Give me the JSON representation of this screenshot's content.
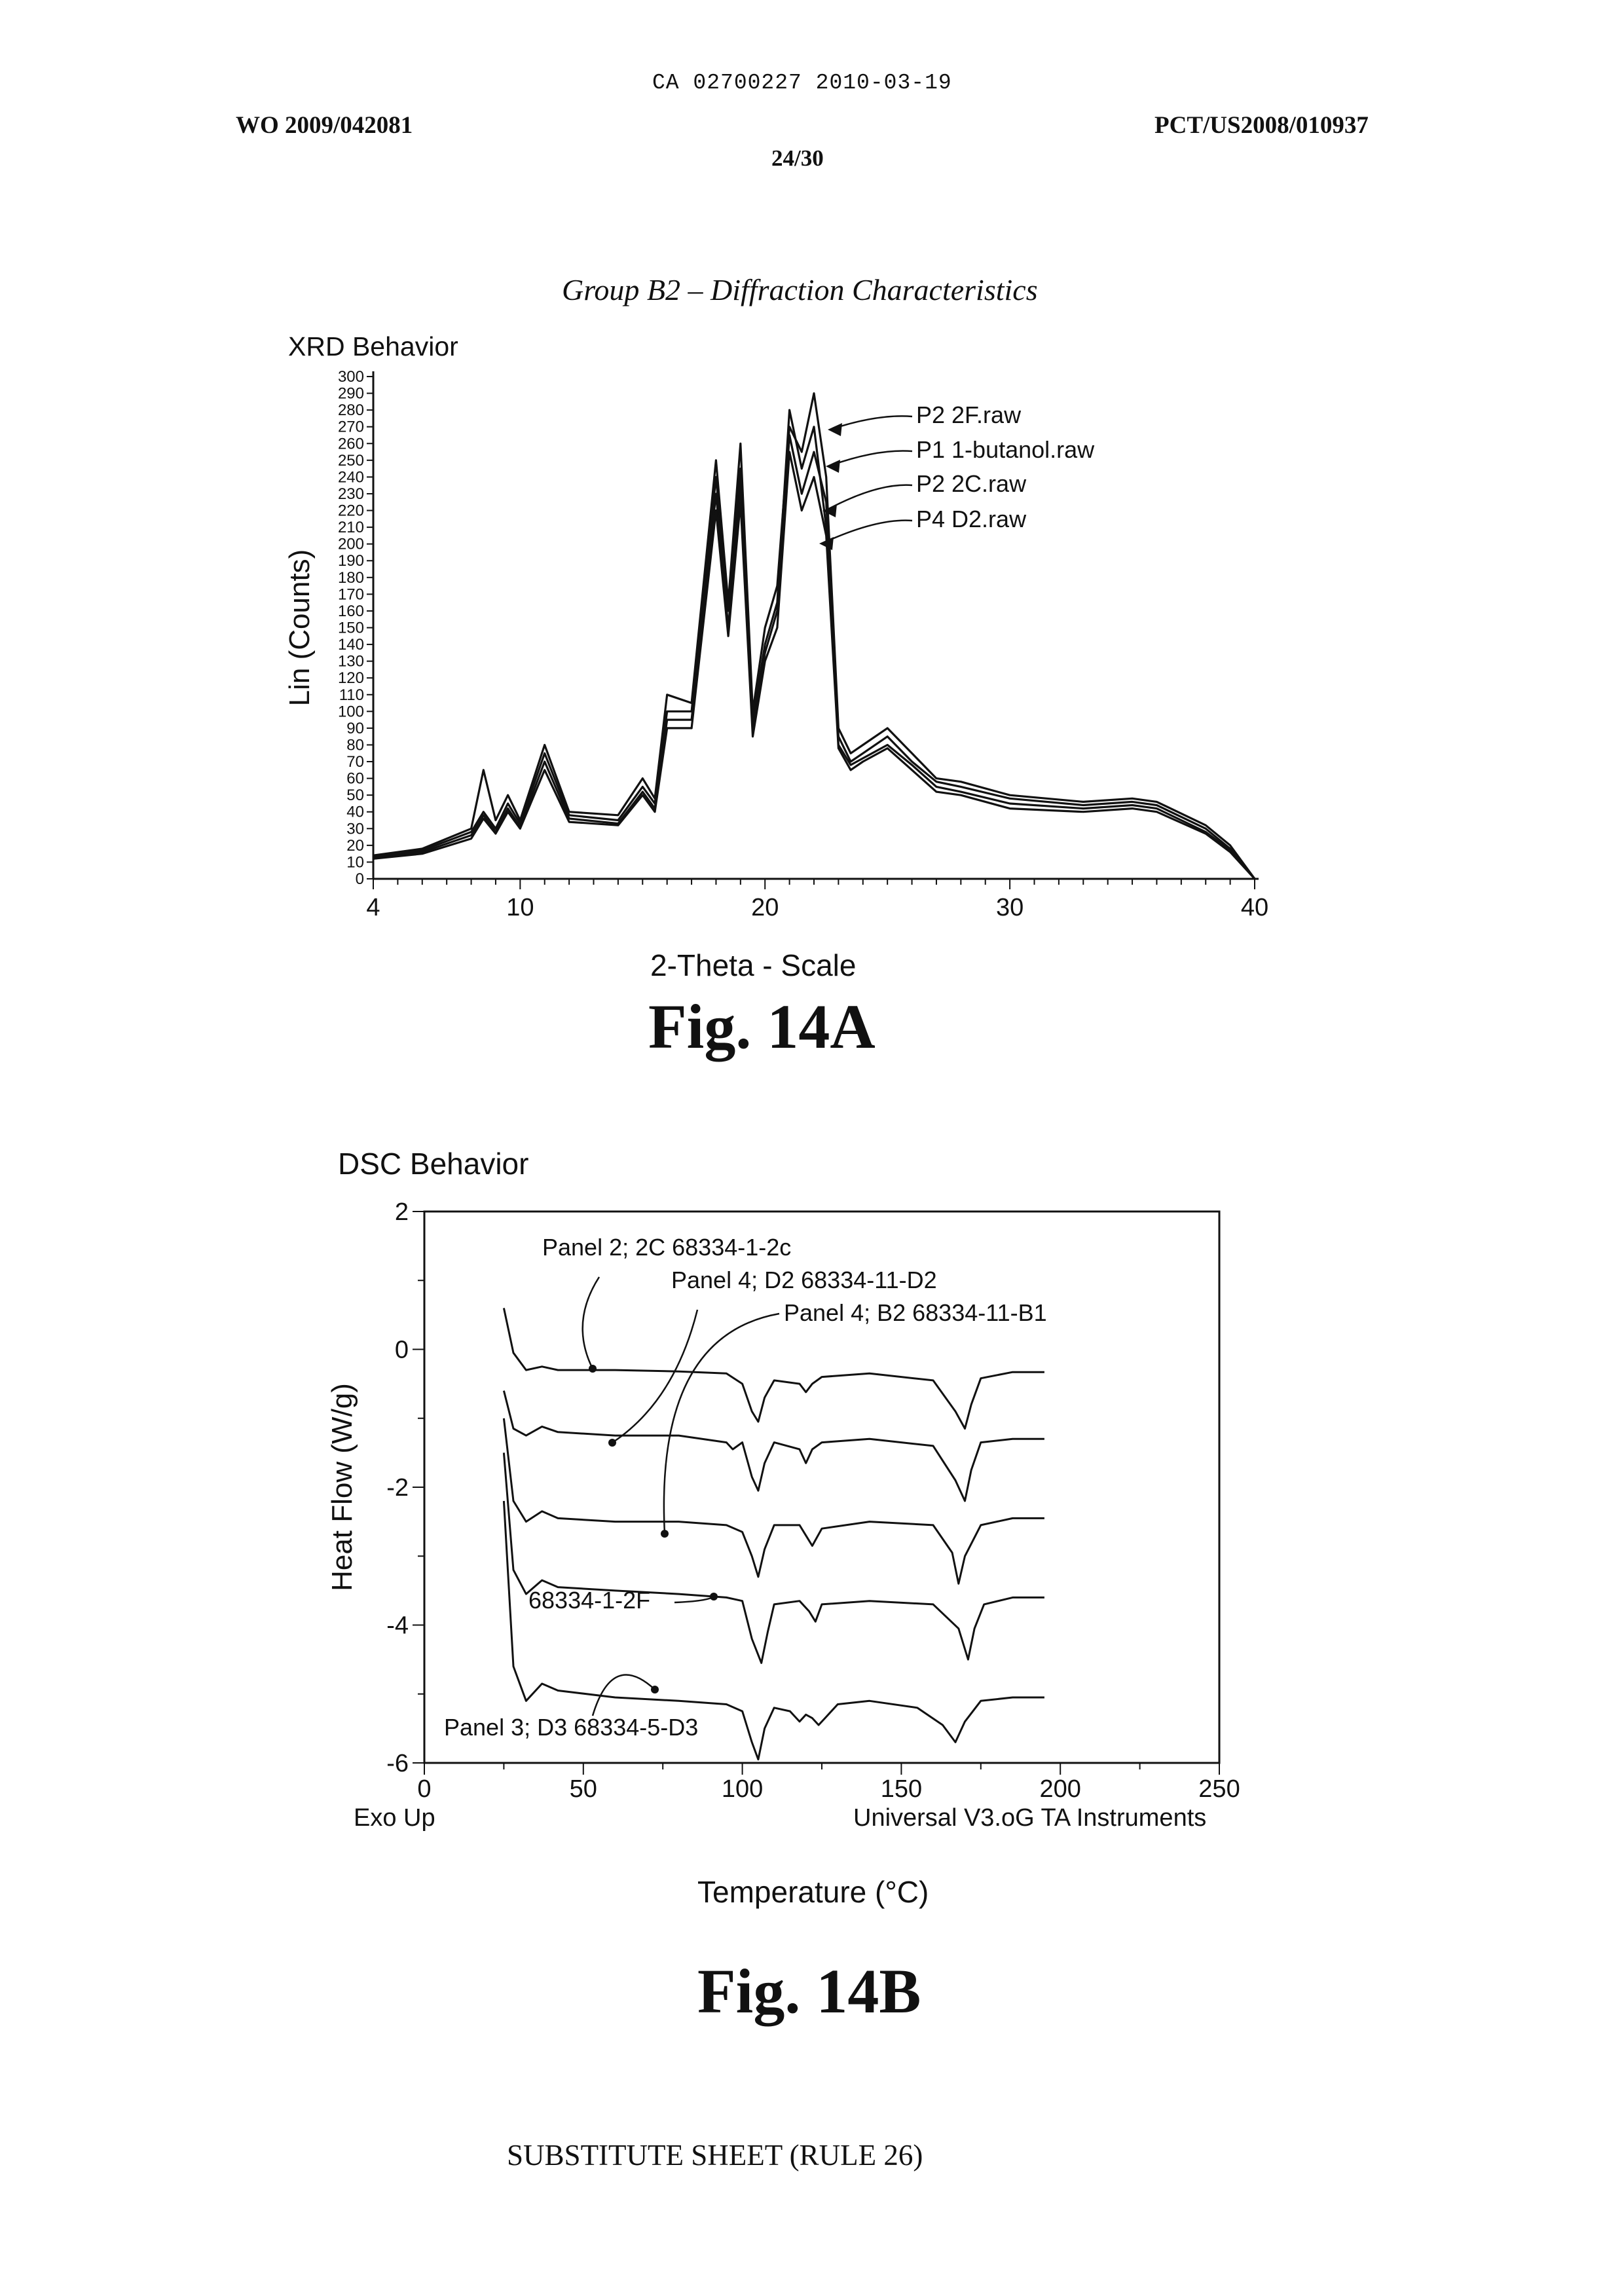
{
  "header": {
    "ca_line": "CA 02700227 2010-03-19",
    "wo_number": "WO 2009/042081",
    "pct_number": "PCT/US2008/010937",
    "page": "24/30"
  },
  "caption_top": "Group B2 – Diffraction Characteristics",
  "footer": "SUBSTITUTE SHEET (RULE 26)",
  "chart_data": [
    {
      "type": "line",
      "title": "XRD Behavior",
      "figure_label": "Fig. 14A",
      "xlabel": "2-Theta - Scale",
      "ylabel": "Lin (Counts)",
      "xlim": [
        4,
        40
      ],
      "ylim": [
        0,
        300
      ],
      "xticks": [
        4,
        10,
        20,
        30,
        40
      ],
      "yticks": [
        0,
        10,
        20,
        30,
        40,
        50,
        60,
        70,
        80,
        90,
        100,
        110,
        120,
        130,
        140,
        150,
        160,
        170,
        180,
        190,
        200,
        210,
        220,
        230,
        240,
        250,
        260,
        270,
        280,
        290,
        300
      ],
      "grid": false,
      "series": [
        {
          "name": "P2 2F.raw",
          "x": [
            4,
            6,
            8,
            8.5,
            9,
            9.5,
            10,
            11,
            12,
            14,
            15,
            15.5,
            16,
            17,
            18,
            18.5,
            19,
            19.5,
            20,
            20.5,
            21,
            21.5,
            22,
            22.5,
            23,
            23.5,
            24,
            25,
            26,
            27,
            28,
            30,
            33,
            35,
            36,
            38,
            39,
            40
          ],
          "y": [
            14,
            18,
            30,
            65,
            35,
            50,
            35,
            80,
            40,
            38,
            60,
            48,
            110,
            105,
            250,
            165,
            260,
            100,
            150,
            175,
            270,
            255,
            290,
            240,
            90,
            75,
            80,
            90,
            75,
            60,
            58,
            50,
            46,
            48,
            46,
            32,
            20,
            0
          ]
        },
        {
          "name": "P1 1-butanol.raw",
          "x": [
            4,
            6,
            8,
            8.5,
            9,
            9.5,
            10,
            11,
            12,
            14,
            15,
            15.5,
            16,
            17,
            18,
            18.5,
            19,
            19.5,
            20,
            20.5,
            21,
            21.5,
            22,
            22.5,
            23,
            23.5,
            24,
            25,
            26,
            27,
            28,
            30,
            33,
            35,
            36,
            38,
            39,
            40
          ],
          "y": [
            13,
            17,
            28,
            40,
            30,
            45,
            33,
            75,
            38,
            35,
            55,
            45,
            100,
            100,
            240,
            160,
            245,
            95,
            140,
            165,
            280,
            245,
            270,
            210,
            85,
            70,
            75,
            85,
            70,
            58,
            55,
            48,
            44,
            46,
            44,
            30,
            18,
            0
          ]
        },
        {
          "name": "P2 2C.raw",
          "x": [
            4,
            6,
            8,
            8.5,
            9,
            9.5,
            10,
            11,
            12,
            14,
            15,
            15.5,
            16,
            17,
            18,
            18.5,
            19,
            19.5,
            20,
            20.5,
            21,
            21.5,
            22,
            22.5,
            23,
            23.5,
            24,
            25,
            26,
            27,
            28,
            30,
            33,
            35,
            36,
            38,
            39,
            40
          ],
          "y": [
            12,
            16,
            26,
            38,
            28,
            42,
            31,
            70,
            36,
            33,
            52,
            42,
            95,
            95,
            230,
            150,
            235,
            90,
            135,
            160,
            265,
            230,
            255,
            225,
            80,
            68,
            72,
            80,
            68,
            55,
            52,
            45,
            42,
            44,
            42,
            28,
            17,
            0
          ]
        },
        {
          "name": "P4 D2.raw",
          "x": [
            4,
            6,
            8,
            8.5,
            9,
            9.5,
            10,
            11,
            12,
            14,
            15,
            15.5,
            16,
            17,
            18,
            18.5,
            19,
            19.5,
            20,
            20.5,
            21,
            21.5,
            22,
            22.5,
            23,
            23.5,
            24,
            25,
            26,
            27,
            28,
            30,
            33,
            35,
            36,
            38,
            39,
            40
          ],
          "y": [
            12,
            15,
            24,
            36,
            27,
            40,
            30,
            65,
            34,
            32,
            50,
            40,
            90,
            90,
            220,
            145,
            225,
            85,
            130,
            150,
            255,
            220,
            240,
            205,
            78,
            65,
            70,
            78,
            65,
            52,
            50,
            42,
            40,
            42,
            40,
            27,
            16,
            0
          ]
        }
      ]
    },
    {
      "type": "line",
      "title": "DSC Behavior",
      "figure_label": "Fig. 14B",
      "xlabel": "Temperature (°C)",
      "ylabel": "Heat Flow (W/g)",
      "xlim": [
        0,
        250
      ],
      "ylim": [
        -6,
        2
      ],
      "xticks": [
        0,
        50,
        100,
        150,
        200,
        250
      ],
      "yticks": [
        2,
        0,
        -2,
        -4,
        -6
      ],
      "grid": false,
      "corner_left": "Exo Up",
      "corner_right": "Universal V3.oG TA Instruments",
      "series": [
        {
          "name": "Panel 2; 2C 68334-1-2c",
          "x": [
            25,
            28,
            32,
            37,
            42,
            60,
            80,
            95,
            100,
            103,
            105,
            107,
            110,
            118,
            120,
            122,
            125,
            140,
            160,
            167,
            170,
            172,
            175,
            185,
            195
          ],
          "y": [
            0.6,
            -0.05,
            -0.3,
            -0.25,
            -0.3,
            -0.3,
            -0.32,
            -0.35,
            -0.5,
            -0.9,
            -1.05,
            -0.7,
            -0.45,
            -0.5,
            -0.62,
            -0.5,
            -0.4,
            -0.35,
            -0.45,
            -0.9,
            -1.15,
            -0.8,
            -0.42,
            -0.33,
            -0.33
          ]
        },
        {
          "name": "Panel 4; D2 68334-11-D2",
          "x": [
            25,
            28,
            32,
            37,
            42,
            60,
            80,
            95,
            97,
            100,
            103,
            105,
            107,
            110,
            118,
            120,
            122,
            125,
            140,
            160,
            167,
            170,
            172,
            175,
            185,
            195
          ],
          "y": [
            -0.6,
            -1.15,
            -1.25,
            -1.12,
            -1.2,
            -1.25,
            -1.25,
            -1.35,
            -1.45,
            -1.35,
            -1.85,
            -2.05,
            -1.65,
            -1.35,
            -1.45,
            -1.65,
            -1.45,
            -1.35,
            -1.3,
            -1.4,
            -1.9,
            -2.2,
            -1.75,
            -1.35,
            -1.3,
            -1.3
          ]
        },
        {
          "name": "Panel 4; B2 68334-11-B1",
          "x": [
            25,
            28,
            32,
            37,
            42,
            60,
            80,
            95,
            100,
            103,
            105,
            107,
            110,
            118,
            120,
            122,
            125,
            140,
            160,
            166,
            168,
            170,
            175,
            185,
            195
          ],
          "y": [
            -1.0,
            -2.2,
            -2.5,
            -2.35,
            -2.45,
            -2.5,
            -2.5,
            -2.55,
            -2.65,
            -3.0,
            -3.3,
            -2.9,
            -2.55,
            -2.55,
            -2.7,
            -2.85,
            -2.6,
            -2.5,
            -2.55,
            -2.95,
            -3.4,
            -3.0,
            -2.55,
            -2.45,
            -2.45
          ]
        },
        {
          "name": "68334-1-2F",
          "x": [
            25,
            28,
            32,
            37,
            42,
            60,
            80,
            95,
            100,
            103,
            106,
            108,
            110,
            118,
            121,
            123,
            125,
            140,
            160,
            168,
            171,
            173,
            176,
            185,
            195
          ],
          "y": [
            -1.5,
            -3.2,
            -3.55,
            -3.35,
            -3.45,
            -3.5,
            -3.55,
            -3.6,
            -3.65,
            -4.2,
            -4.55,
            -4.1,
            -3.7,
            -3.65,
            -3.8,
            -3.95,
            -3.7,
            -3.65,
            -3.7,
            -4.05,
            -4.5,
            -4.05,
            -3.7,
            -3.6,
            -3.6
          ]
        },
        {
          "name": "Panel 3; D3 68334-5-D3",
          "x": [
            25,
            28,
            32,
            37,
            42,
            60,
            80,
            95,
            100,
            103,
            105,
            107,
            110,
            115,
            118,
            120,
            122,
            124,
            126,
            130,
            140,
            155,
            163,
            167,
            170,
            175,
            185,
            195
          ],
          "y": [
            -2.2,
            -4.6,
            -5.1,
            -4.85,
            -4.95,
            -5.05,
            -5.1,
            -5.15,
            -5.25,
            -5.7,
            -5.95,
            -5.5,
            -5.2,
            -5.25,
            -5.4,
            -5.3,
            -5.35,
            -5.45,
            -5.35,
            -5.15,
            -5.1,
            -5.2,
            -5.45,
            -5.7,
            -5.4,
            -5.1,
            -5.05,
            -5.05
          ]
        }
      ]
    }
  ]
}
